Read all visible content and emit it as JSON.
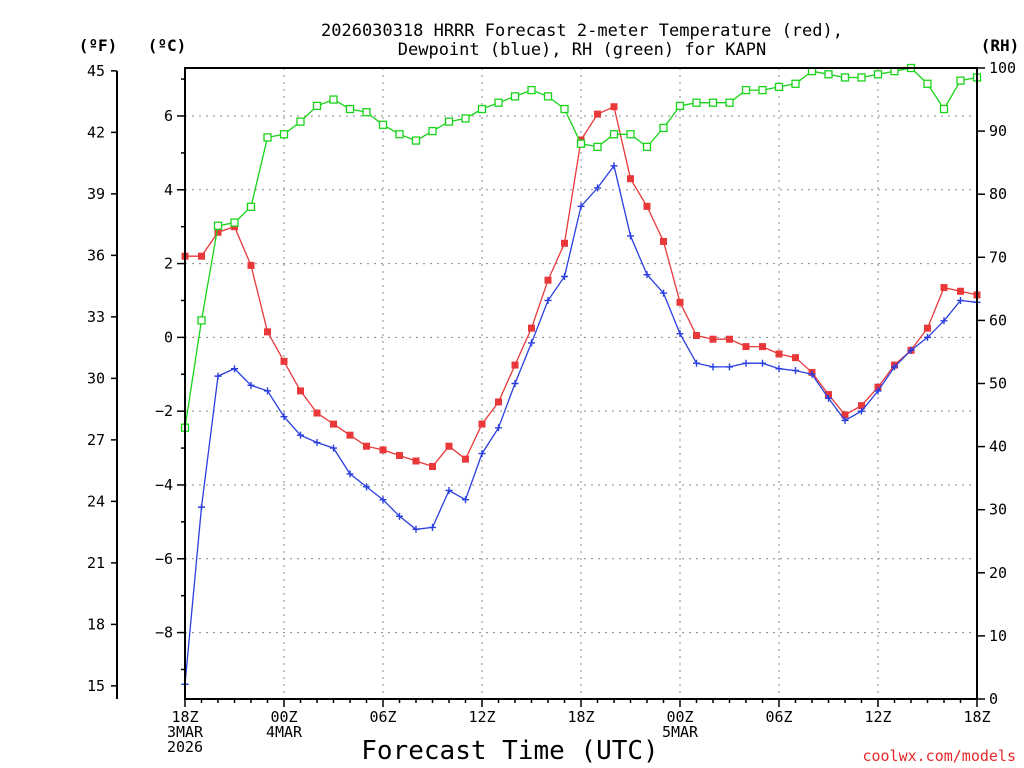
{
  "chart_data": {
    "type": "line",
    "title_line1": "2026030318 HRRR Forecast 2-meter Temperature (red),",
    "title_line2": "Dewpoint (blue), RH (green) for KAPN",
    "unit_f": "(ºF)",
    "unit_c": "(ºC)",
    "unit_rh": "(RH)",
    "xlabel": "Forecast Time (UTC)",
    "credit": "coolwx.com/models",
    "x_range_hours": [
      0,
      48
    ],
    "c_range": [
      -9.8,
      7.3
    ],
    "rh_range": [
      0,
      100
    ],
    "c_ticks": [
      -8,
      -6,
      -4,
      -2,
      0,
      2,
      4,
      6
    ],
    "c_tick_labels": [
      "−8",
      "−6",
      "−4",
      "−2",
      "0",
      "2",
      "4",
      "6"
    ],
    "f_ticks": [
      15,
      18,
      21,
      24,
      27,
      30,
      33,
      36,
      39,
      42,
      45
    ],
    "rh_ticks": [
      0,
      10,
      20,
      30,
      40,
      50,
      60,
      70,
      80,
      90,
      100
    ],
    "x_ticks": [
      {
        "hour": 0,
        "lines": [
          "18Z",
          "3MAR",
          "2026"
        ]
      },
      {
        "hour": 6,
        "lines": [
          "00Z",
          "4MAR"
        ]
      },
      {
        "hour": 12,
        "lines": [
          "06Z"
        ]
      },
      {
        "hour": 18,
        "lines": [
          "12Z"
        ]
      },
      {
        "hour": 24,
        "lines": [
          "18Z"
        ]
      },
      {
        "hour": 30,
        "lines": [
          "00Z",
          "5MAR"
        ]
      },
      {
        "hour": 36,
        "lines": [
          "06Z"
        ]
      },
      {
        "hour": 42,
        "lines": [
          "12Z"
        ]
      },
      {
        "hour": 48,
        "lines": [
          "18Z"
        ]
      }
    ],
    "series": [
      {
        "name": "Temperature",
        "unit": "C",
        "color": "#e8383a",
        "marker": "filled-square",
        "values": [
          2.2,
          2.2,
          2.85,
          3.0,
          1.95,
          0.15,
          -0.65,
          -1.45,
          -2.05,
          -2.35,
          -2.65,
          -2.95,
          -3.05,
          -3.2,
          -3.35,
          -3.5,
          -2.95,
          -3.3,
          -2.35,
          -1.75,
          -0.75,
          0.25,
          1.55,
          2.55,
          5.35,
          6.05,
          6.25,
          4.3,
          3.55,
          2.6,
          0.95,
          0.05,
          -0.05,
          -0.05,
          -0.25,
          -0.25,
          -0.45,
          -0.55,
          -0.95,
          -1.55,
          -2.1,
          -1.85,
          -1.35,
          -0.75,
          -0.35,
          0.25,
          1.35,
          1.25,
          1.15
        ]
      },
      {
        "name": "Dewpoint",
        "unit": "C",
        "color": "#2a3ee0",
        "marker": "plus",
        "values": [
          -9.4,
          -4.6,
          -1.05,
          -0.85,
          -1.3,
          -1.45,
          -2.15,
          -2.65,
          -2.85,
          -3.0,
          -3.7,
          -4.05,
          -4.4,
          -4.85,
          -5.2,
          -5.15,
          -4.15,
          -4.4,
          -3.15,
          -2.45,
          -1.25,
          -0.15,
          1.0,
          1.65,
          3.55,
          4.05,
          4.65,
          2.75,
          1.7,
          1.2,
          0.1,
          -0.7,
          -0.8,
          -0.8,
          -0.7,
          -0.7,
          -0.85,
          -0.9,
          -1.0,
          -1.65,
          -2.25,
          -2.0,
          -1.45,
          -0.8,
          -0.35,
          0.0,
          0.45,
          1.0,
          0.95
        ]
      },
      {
        "name": "RH",
        "unit": "%",
        "color": "#18d418",
        "marker": "open-square",
        "values": [
          43,
          60,
          75,
          75.5,
          78,
          89,
          89.5,
          91.5,
          94,
          95,
          93.5,
          93,
          91,
          89.5,
          88.5,
          90,
          91.5,
          92,
          93.5,
          94.5,
          95.5,
          96.5,
          95.5,
          93.5,
          88,
          87.5,
          89.5,
          89.5,
          87.5,
          90.5,
          94,
          94.5,
          94.5,
          94.5,
          96.5,
          96.5,
          97,
          97.5,
          99.5,
          99,
          98.5,
          98.5,
          99,
          99.5,
          100,
          97.5,
          93.5,
          98,
          98.5
        ]
      }
    ]
  }
}
